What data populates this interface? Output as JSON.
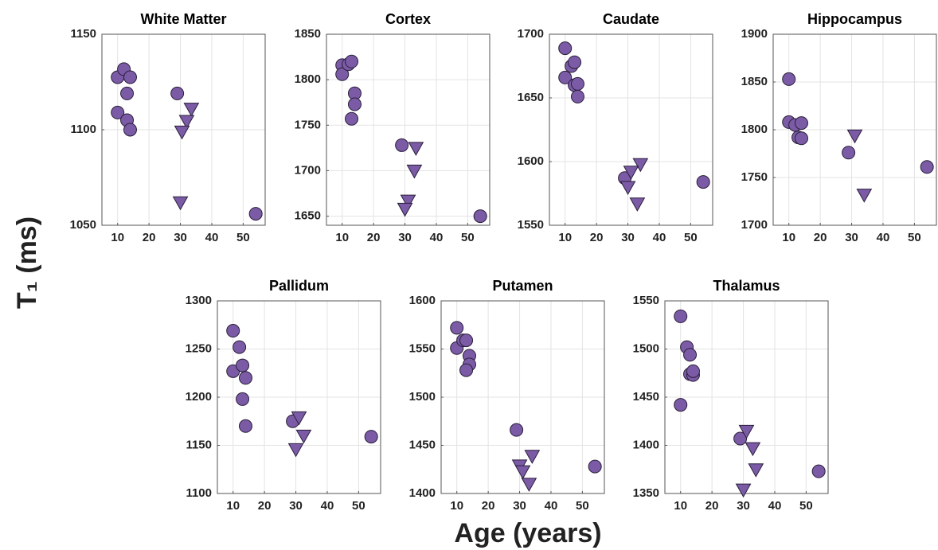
{
  "figure": {
    "xlabel": "Age (years)",
    "ylabel": "T₁ (ms)"
  },
  "chart_data": [
    {
      "type": "scatter",
      "title": "White Matter",
      "xlim": [
        5,
        57
      ],
      "xticks": [
        10,
        20,
        30,
        40,
        50
      ],
      "ylim": [
        1050,
        1150
      ],
      "yticks": [
        1050,
        1100,
        1150
      ],
      "grid": true,
      "series": [
        {
          "color": "#7b5ba6",
          "marker": "circle",
          "x": [
            10,
            12,
            14,
            13,
            10,
            13,
            14,
            29,
            54
          ],
          "values": [
            1127.5,
            1131.7,
            1127.5,
            1119,
            1109,
            1105,
            1100,
            1119,
            1056
          ]
        },
        {
          "color": "#7b5ba6",
          "marker": "triangle",
          "x": [
            33.5,
            32,
            30.5,
            30
          ],
          "values": [
            1111,
            1104.6,
            1099,
            1062
          ]
        }
      ]
    },
    {
      "type": "scatter",
      "title": "Cortex",
      "xlim": [
        5,
        57
      ],
      "xticks": [
        10,
        20,
        30,
        40,
        50
      ],
      "ylim": [
        1640,
        1850
      ],
      "yticks": [
        1650,
        1700,
        1750,
        1800,
        1850
      ],
      "grid": true,
      "series": [
        {
          "color": "#7b5ba6",
          "marker": "circle",
          "x": [
            10,
            10,
            12,
            13,
            14,
            14,
            13,
            29,
            54
          ],
          "values": [
            1816,
            1806,
            1817,
            1820,
            1785,
            1773,
            1757,
            1728,
            1650
          ]
        },
        {
          "color": "#7b5ba6",
          "marker": "triangle",
          "x": [
            33.5,
            33,
            31,
            30
          ],
          "values": [
            1725,
            1700,
            1667,
            1658
          ]
        }
      ]
    },
    {
      "type": "scatter",
      "title": "Caudate",
      "xlim": [
        5,
        57
      ],
      "xticks": [
        10,
        20,
        30,
        40,
        50
      ],
      "ylim": [
        1550,
        1700
      ],
      "yticks": [
        1550,
        1600,
        1650,
        1700
      ],
      "grid": true,
      "series": [
        {
          "color": "#7b5ba6",
          "marker": "circle",
          "x": [
            10,
            10,
            12,
            13,
            13,
            14,
            14,
            29,
            54
          ],
          "values": [
            1689,
            1666,
            1675,
            1678,
            1660,
            1661,
            1651,
            1587,
            1584
          ]
        },
        {
          "color": "#7b5ba6",
          "marker": "triangle",
          "x": [
            34,
            31,
            30,
            33
          ],
          "values": [
            1598,
            1592,
            1580,
            1567
          ]
        }
      ]
    },
    {
      "type": "scatter",
      "title": "Hippocampus",
      "xlim": [
        5,
        57
      ],
      "xticks": [
        10,
        20,
        30,
        40,
        50
      ],
      "ylim": [
        1700,
        1900
      ],
      "yticks": [
        1700,
        1750,
        1800,
        1850,
        1900
      ],
      "grid": true,
      "series": [
        {
          "color": "#7b5ba6",
          "marker": "circle",
          "x": [
            10,
            10,
            12,
            14,
            13,
            14,
            29,
            54
          ],
          "values": [
            1853,
            1808,
            1805,
            1807,
            1792,
            1791,
            1776,
            1761
          ]
        },
        {
          "color": "#7b5ba6",
          "marker": "triangle",
          "x": [
            31,
            34
          ],
          "values": [
            1794,
            1732
          ]
        }
      ]
    },
    {
      "type": "scatter",
      "title": "Pallidum",
      "xlim": [
        5,
        57
      ],
      "xticks": [
        10,
        20,
        30,
        40,
        50
      ],
      "ylim": [
        1100,
        1300
      ],
      "yticks": [
        1100,
        1150,
        1200,
        1250,
        1300
      ],
      "grid": true,
      "series": [
        {
          "color": "#7b5ba6",
          "marker": "circle",
          "x": [
            10,
            12,
            10,
            13,
            14,
            13,
            14,
            29,
            54
          ],
          "values": [
            1269,
            1252,
            1227,
            1233,
            1220,
            1198,
            1170,
            1175,
            1159
          ]
        },
        {
          "color": "#7b5ba6",
          "marker": "triangle",
          "x": [
            31,
            32.5,
            30
          ],
          "values": [
            1179,
            1160,
            1146
          ]
        }
      ]
    },
    {
      "type": "scatter",
      "title": "Putamen",
      "xlim": [
        5,
        57
      ],
      "xticks": [
        10,
        20,
        30,
        40,
        50
      ],
      "ylim": [
        1400,
        1600
      ],
      "yticks": [
        1400,
        1450,
        1500,
        1550,
        1600
      ],
      "grid": true,
      "series": [
        {
          "color": "#7b5ba6",
          "marker": "circle",
          "x": [
            10,
            10,
            12,
            13,
            14,
            14,
            13,
            29,
            54
          ],
          "values": [
            1572,
            1551,
            1559,
            1559,
            1543,
            1534,
            1528,
            1466,
            1428
          ]
        },
        {
          "color": "#7b5ba6",
          "marker": "triangle",
          "x": [
            34,
            30,
            31,
            33
          ],
          "values": [
            1439,
            1429,
            1423,
            1410
          ]
        }
      ]
    },
    {
      "type": "scatter",
      "title": "Thalamus",
      "xlim": [
        5,
        57
      ],
      "xticks": [
        10,
        20,
        30,
        40,
        50
      ],
      "ylim": [
        1350,
        1550
      ],
      "yticks": [
        1350,
        1400,
        1450,
        1500,
        1550
      ],
      "grid": true,
      "series": [
        {
          "color": "#7b5ba6",
          "marker": "circle",
          "x": [
            10,
            12,
            13,
            13,
            14,
            14,
            10,
            29,
            54
          ],
          "values": [
            1534,
            1502,
            1494,
            1474,
            1473,
            1477,
            1442,
            1407,
            1373
          ]
        },
        {
          "color": "#7b5ba6",
          "marker": "triangle",
          "x": [
            31,
            33,
            34,
            30
          ],
          "values": [
            1415,
            1397,
            1375,
            1354
          ]
        }
      ]
    }
  ]
}
